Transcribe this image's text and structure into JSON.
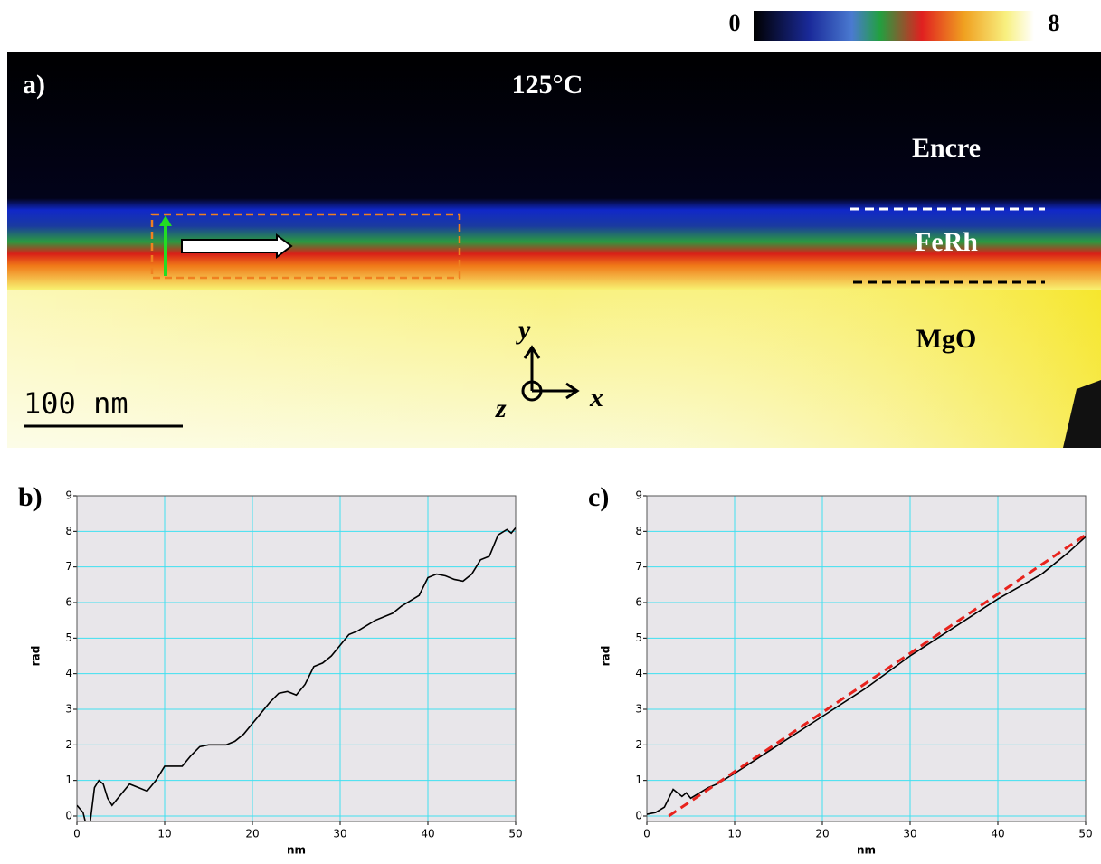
{
  "colorbar": {
    "range": [
      0,
      8
    ]
  },
  "panel_a": {
    "label": "a)",
    "temperature": "125°C",
    "layer_top": "Encre",
    "layer_middle": "FeRh",
    "layer_bottom": "MgO",
    "scale_bar": "100 nm",
    "axis_y": "y",
    "axis_x": "x",
    "axis_z": "z"
  },
  "chart_data": [
    {
      "type": "line",
      "panel_label": "b)",
      "xlabel": "nm",
      "ylabel": "rad",
      "xlim": [
        0,
        50
      ],
      "ylim": [
        0,
        9
      ],
      "xticks": [
        0,
        10,
        20,
        30,
        40,
        50
      ],
      "yticks": [
        0,
        1,
        2,
        3,
        4,
        5,
        6,
        7,
        8,
        9
      ],
      "grid": true,
      "series": [
        {
          "color": "#000000",
          "dash": false,
          "x": [
            0,
            0.7,
            1,
            1.5,
            2,
            2.5,
            3,
            3.5,
            4,
            5,
            6,
            7,
            8,
            9,
            10,
            11,
            12,
            13,
            14,
            15,
            16,
            17,
            18,
            19,
            20,
            21,
            22,
            23,
            24,
            25,
            26,
            27,
            28,
            29,
            30,
            31,
            32,
            33,
            34,
            35,
            36,
            37,
            38,
            39,
            40,
            41,
            42,
            43,
            44,
            45,
            46,
            47,
            48,
            49,
            49.5,
            50
          ],
          "values": [
            0.3,
            0.1,
            -0.2,
            -0.2,
            0.8,
            1.0,
            0.9,
            0.5,
            0.3,
            0.6,
            0.9,
            0.8,
            0.7,
            1.0,
            1.4,
            1.4,
            1.4,
            1.7,
            1.95,
            2.0,
            2.0,
            2.0,
            2.1,
            2.3,
            2.6,
            2.9,
            3.2,
            3.45,
            3.5,
            3.4,
            3.7,
            4.2,
            4.3,
            4.5,
            4.8,
            5.1,
            5.2,
            5.35,
            5.5,
            5.6,
            5.7,
            5.9,
            6.05,
            6.2,
            6.7,
            6.8,
            6.75,
            6.65,
            6.6,
            6.8,
            7.2,
            7.3,
            7.9,
            8.05,
            7.95,
            8.1
          ]
        }
      ]
    },
    {
      "type": "line",
      "panel_label": "c)",
      "xlabel": "nm",
      "ylabel": "rad",
      "xlim": [
        0,
        50
      ],
      "ylim": [
        0,
        9
      ],
      "xticks": [
        0,
        10,
        20,
        30,
        40,
        50
      ],
      "yticks": [
        0,
        1,
        2,
        3,
        4,
        5,
        6,
        7,
        8,
        9
      ],
      "grid": true,
      "series": [
        {
          "color": "#000000",
          "dash": false,
          "x": [
            0,
            1,
            2,
            3,
            3.5,
            4,
            4.5,
            5,
            6,
            7,
            8,
            10,
            15,
            20,
            25,
            30,
            35,
            40,
            45,
            48,
            50
          ],
          "values": [
            0.05,
            0.1,
            0.25,
            0.75,
            0.65,
            0.55,
            0.65,
            0.5,
            0.65,
            0.8,
            0.9,
            1.2,
            2.0,
            2.8,
            3.6,
            4.5,
            5.3,
            6.1,
            6.8,
            7.4,
            7.85
          ]
        },
        {
          "color": "#e8231d",
          "dash": true,
          "x": [
            2.5,
            50
          ],
          "values": [
            0,
            7.9
          ]
        }
      ]
    }
  ]
}
